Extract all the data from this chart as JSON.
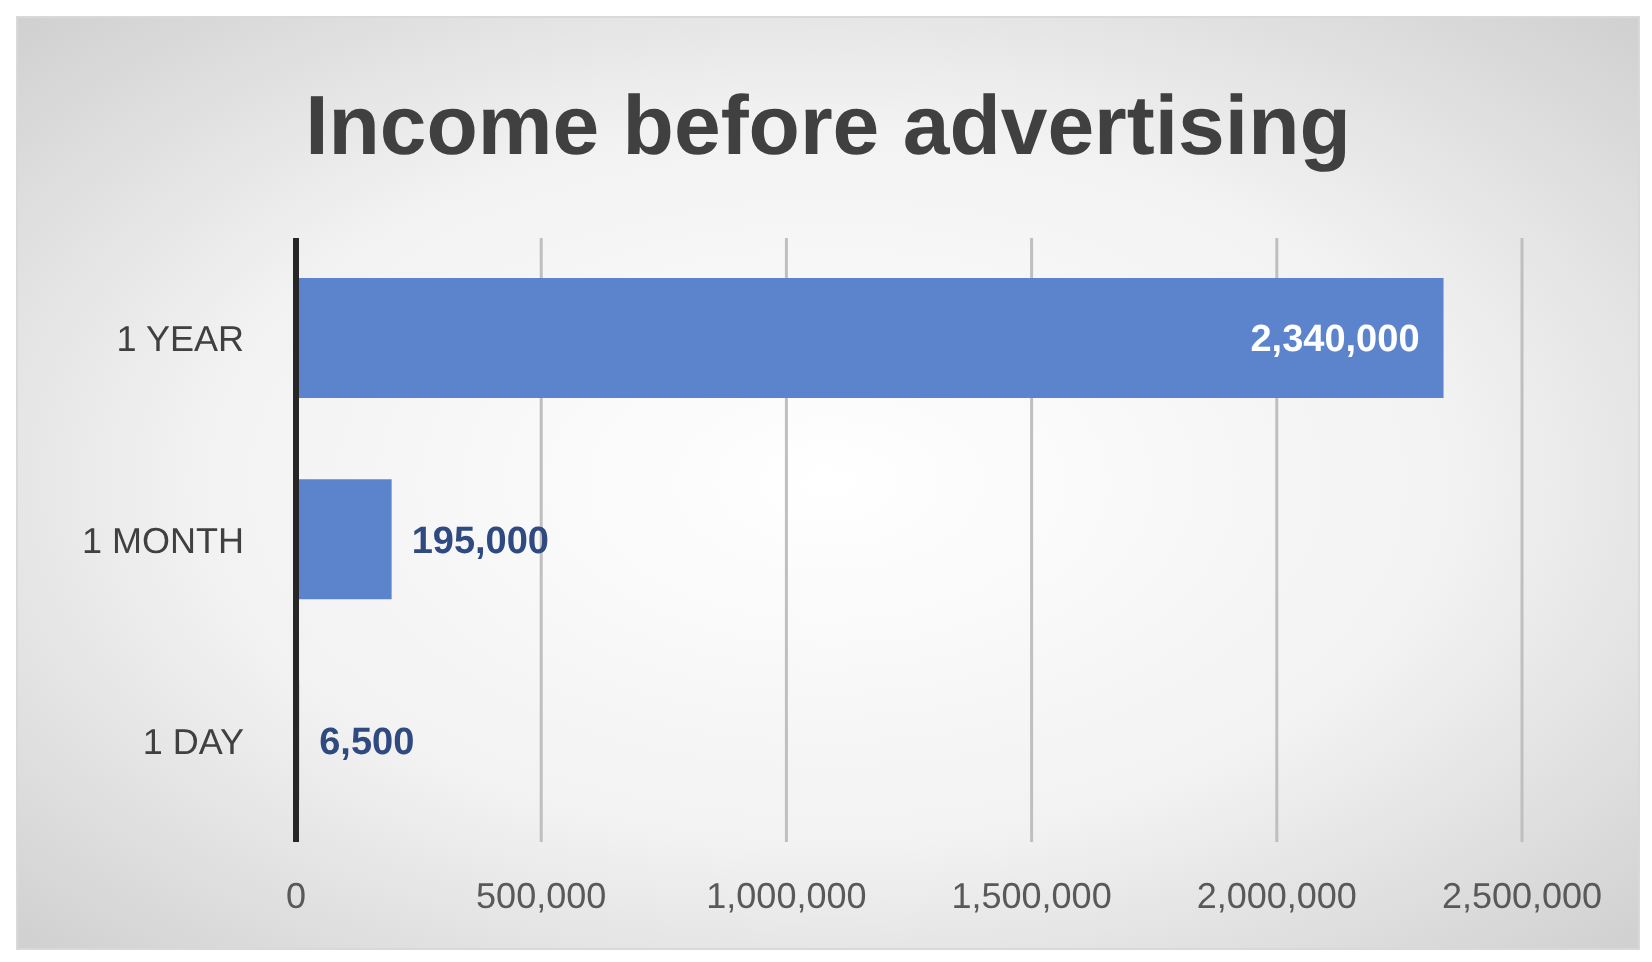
{
  "chart_data": {
    "type": "bar",
    "title": "Income before advertising",
    "orientation": "horizontal",
    "categories": [
      "1 YEAR",
      "1 MONTH",
      "1 DAY"
    ],
    "values": [
      2340000,
      195000,
      6500
    ],
    "color": "#5b84cc",
    "xlim": [
      0,
      2500000
    ],
    "xticks": [
      0,
      {
        "value": 500000,
        "label": "500,000"
      },
      {
        "value": 1000000,
        "label": "1,000,000"
      },
      {
        "value": 1500000,
        "label": "1,500,000"
      },
      {
        "value": 2000000,
        "label": "2,000,000"
      },
      {
        "value": 2500000,
        "label": "2,500,000"
      }
    ],
    "grid": "x",
    "value_labels": [
      "2,340,000",
      "195,000",
      "6,500"
    ]
  }
}
